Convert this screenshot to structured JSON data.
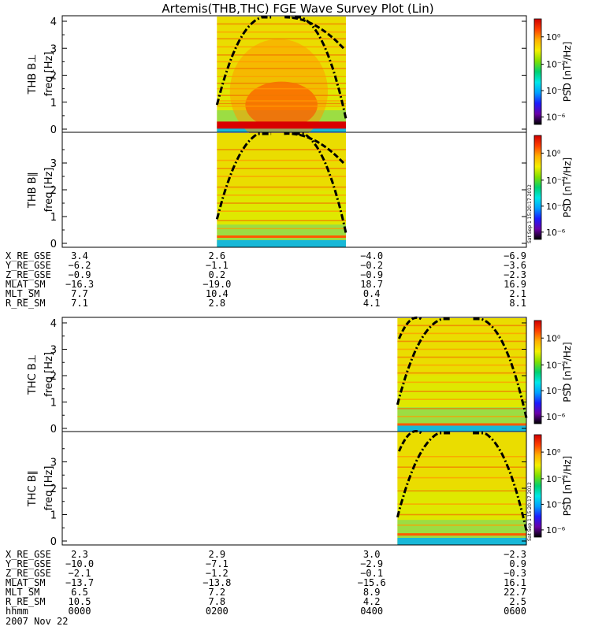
{
  "title": "Artemis(THB,THC) FGE Wave Survey Plot (Lin)",
  "colorbar": {
    "label": "PSD [nT²/Hz]",
    "ticks": [
      "10⁰",
      "10⁻²",
      "10⁻⁴",
      "10⁻⁶"
    ],
    "palette": [
      "#000000",
      "#6a00a8",
      "#1c1cff",
      "#00a0ff",
      "#00e8e8",
      "#00d070",
      "#80e000",
      "#f4f000",
      "#ffb000",
      "#ff4000",
      "#d00000"
    ]
  },
  "stamp": "Sat Sep 1 15:20:17 2012",
  "chart_data": [
    {
      "type": "heatmap",
      "name": "THB B⊥",
      "ylabel": "freq [Hz]",
      "ylim": [
        0,
        4
      ],
      "yticks": [
        "0",
        "1",
        "2",
        "3",
        "4"
      ],
      "data_start_hhmm": "0200",
      "data_end_hhmm": "0340",
      "bands_hz": [
        0.15,
        0.85,
        0.95,
        1.05,
        1.25,
        1.5,
        1.7,
        1.95,
        2.25,
        2.5,
        2.75,
        3.05,
        3.35,
        3.6,
        3.9
      ]
    },
    {
      "type": "heatmap",
      "name": "THB B∥",
      "ylabel": "freq [Hz]",
      "ylim": [
        0,
        4
      ],
      "yticks": [
        "0",
        "1",
        "2",
        "3"
      ],
      "data_start_hhmm": "0200",
      "data_end_hhmm": "0340",
      "bands_hz": [
        0.25,
        0.55,
        0.85,
        1.2,
        1.5,
        1.8,
        2.1,
        2.5,
        2.8,
        3.1,
        3.5
      ]
    },
    {
      "type": "heatmap",
      "name": "THC B⊥",
      "ylabel": "freq [Hz]",
      "ylim": [
        0,
        4
      ],
      "yticks": [
        "0",
        "1",
        "2",
        "3",
        "4"
      ],
      "data_start_hhmm": "0420",
      "data_end_hhmm": "0600",
      "bands_hz": [
        0.15,
        0.45,
        0.75,
        1.1,
        1.4,
        1.75,
        2.1,
        2.4,
        2.7,
        3.0,
        3.3,
        3.6,
        3.9
      ]
    },
    {
      "type": "heatmap",
      "name": "THC B∥",
      "ylabel": "freq [Hz]",
      "ylim": [
        0,
        4
      ],
      "yticks": [
        "0",
        "1",
        "2",
        "3"
      ],
      "data_start_hhmm": "0420",
      "data_end_hhmm": "0600",
      "bands_hz": [
        0.25,
        0.6,
        1.0,
        1.4,
        1.9,
        2.4,
        2.8,
        3.2
      ]
    }
  ],
  "ephemeris": [
    {
      "rows": [
        {
          "label": "X_RE_GSE",
          "values": [
            "3.4",
            "2.6",
            "-4.0",
            "-6.9"
          ]
        },
        {
          "label": "Y_RE_GSE",
          "values": [
            "-6.2",
            "-1.1",
            "-0.2",
            "-3.6"
          ]
        },
        {
          "label": "Z_RE_GSE",
          "values": [
            "-0.9",
            "0.2",
            "-0.9",
            "-2.3"
          ]
        },
        {
          "label": "MLAT_SM",
          "values": [
            "-16.3",
            "-19.0",
            "18.7",
            "16.9"
          ]
        },
        {
          "label": "MLT_SM",
          "values": [
            "7.7",
            "10.4",
            "0.4",
            "2.1"
          ]
        },
        {
          "label": "R_RE_SM",
          "values": [
            "7.1",
            "2.8",
            "4.1",
            "8.1"
          ]
        }
      ]
    },
    {
      "rows": [
        {
          "label": "X_RE_GSE",
          "values": [
            "2.3",
            "2.9",
            "3.0",
            "-2.3"
          ]
        },
        {
          "label": "Y_RE_GSE",
          "values": [
            "-10.0",
            "-7.1",
            "-2.9",
            "0.9"
          ]
        },
        {
          "label": "Z_RE_GSE",
          "values": [
            "-2.1",
            "-1.2",
            "-0.1",
            "-0.3"
          ]
        },
        {
          "label": "MLAT_SM",
          "values": [
            "-13.7",
            "-13.8",
            "-15.6",
            "16.1"
          ]
        },
        {
          "label": "MLT_SM",
          "values": [
            "6.5",
            "7.2",
            "8.9",
            "22.7"
          ]
        },
        {
          "label": "R_RE_SM",
          "values": [
            "10.5",
            "7.8",
            "4.2",
            "2.5"
          ]
        },
        {
          "label": "hhmm",
          "values": [
            "0000",
            "0200",
            "0400",
            "0600"
          ]
        }
      ]
    }
  ],
  "date": "2007 Nov 22"
}
